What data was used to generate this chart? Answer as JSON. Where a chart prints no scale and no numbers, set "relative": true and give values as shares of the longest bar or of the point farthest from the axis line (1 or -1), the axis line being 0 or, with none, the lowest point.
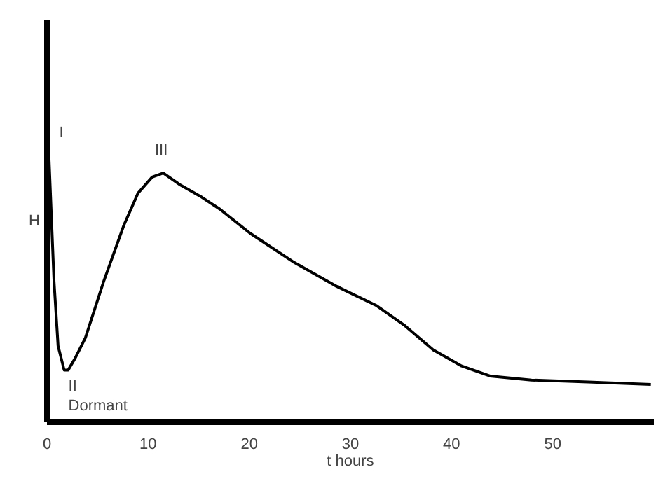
{
  "chart_data": {
    "type": "line",
    "relative": true,
    "xlabel": "t hours",
    "ylabel": "H",
    "x": [
      0,
      0.1,
      0.7,
      1.1,
      1.7,
      2.1,
      2.8,
      3.8,
      5.6,
      7.6,
      9,
      10.4,
      11.5,
      13.2,
      15.3,
      17.1,
      20.1,
      24.3,
      28.5,
      32.6,
      35.4,
      38.2,
      41,
      43.8,
      47.9,
      53.5,
      59.7
    ],
    "series": [
      {
        "color": "#000000",
        "values": [
          1.0,
          0.72,
          0.35,
          0.19,
          0.13,
          0.13,
          0.16,
          0.21,
          0.35,
          0.49,
          0.57,
          0.61,
          0.62,
          0.59,
          0.56,
          0.53,
          0.47,
          0.4,
          0.34,
          0.29,
          0.24,
          0.18,
          0.14,
          0.115,
          0.105,
          0.1,
          0.094
        ]
      }
    ],
    "xlim": [
      0,
      60
    ],
    "xticks": [
      0,
      10,
      20,
      30,
      40,
      50
    ],
    "grid": false,
    "marker": "none",
    "line_style": "solid",
    "annotations": [
      {
        "text": "I",
        "x": 0.1,
        "y": 0.72
      },
      {
        "text": "III",
        "x": 11.5,
        "y": 0.62
      },
      {
        "text": "II",
        "x": 1.7,
        "y": 0.13
      },
      {
        "text": "Dormant",
        "x": 1.7,
        "y": 0.13
      }
    ]
  }
}
